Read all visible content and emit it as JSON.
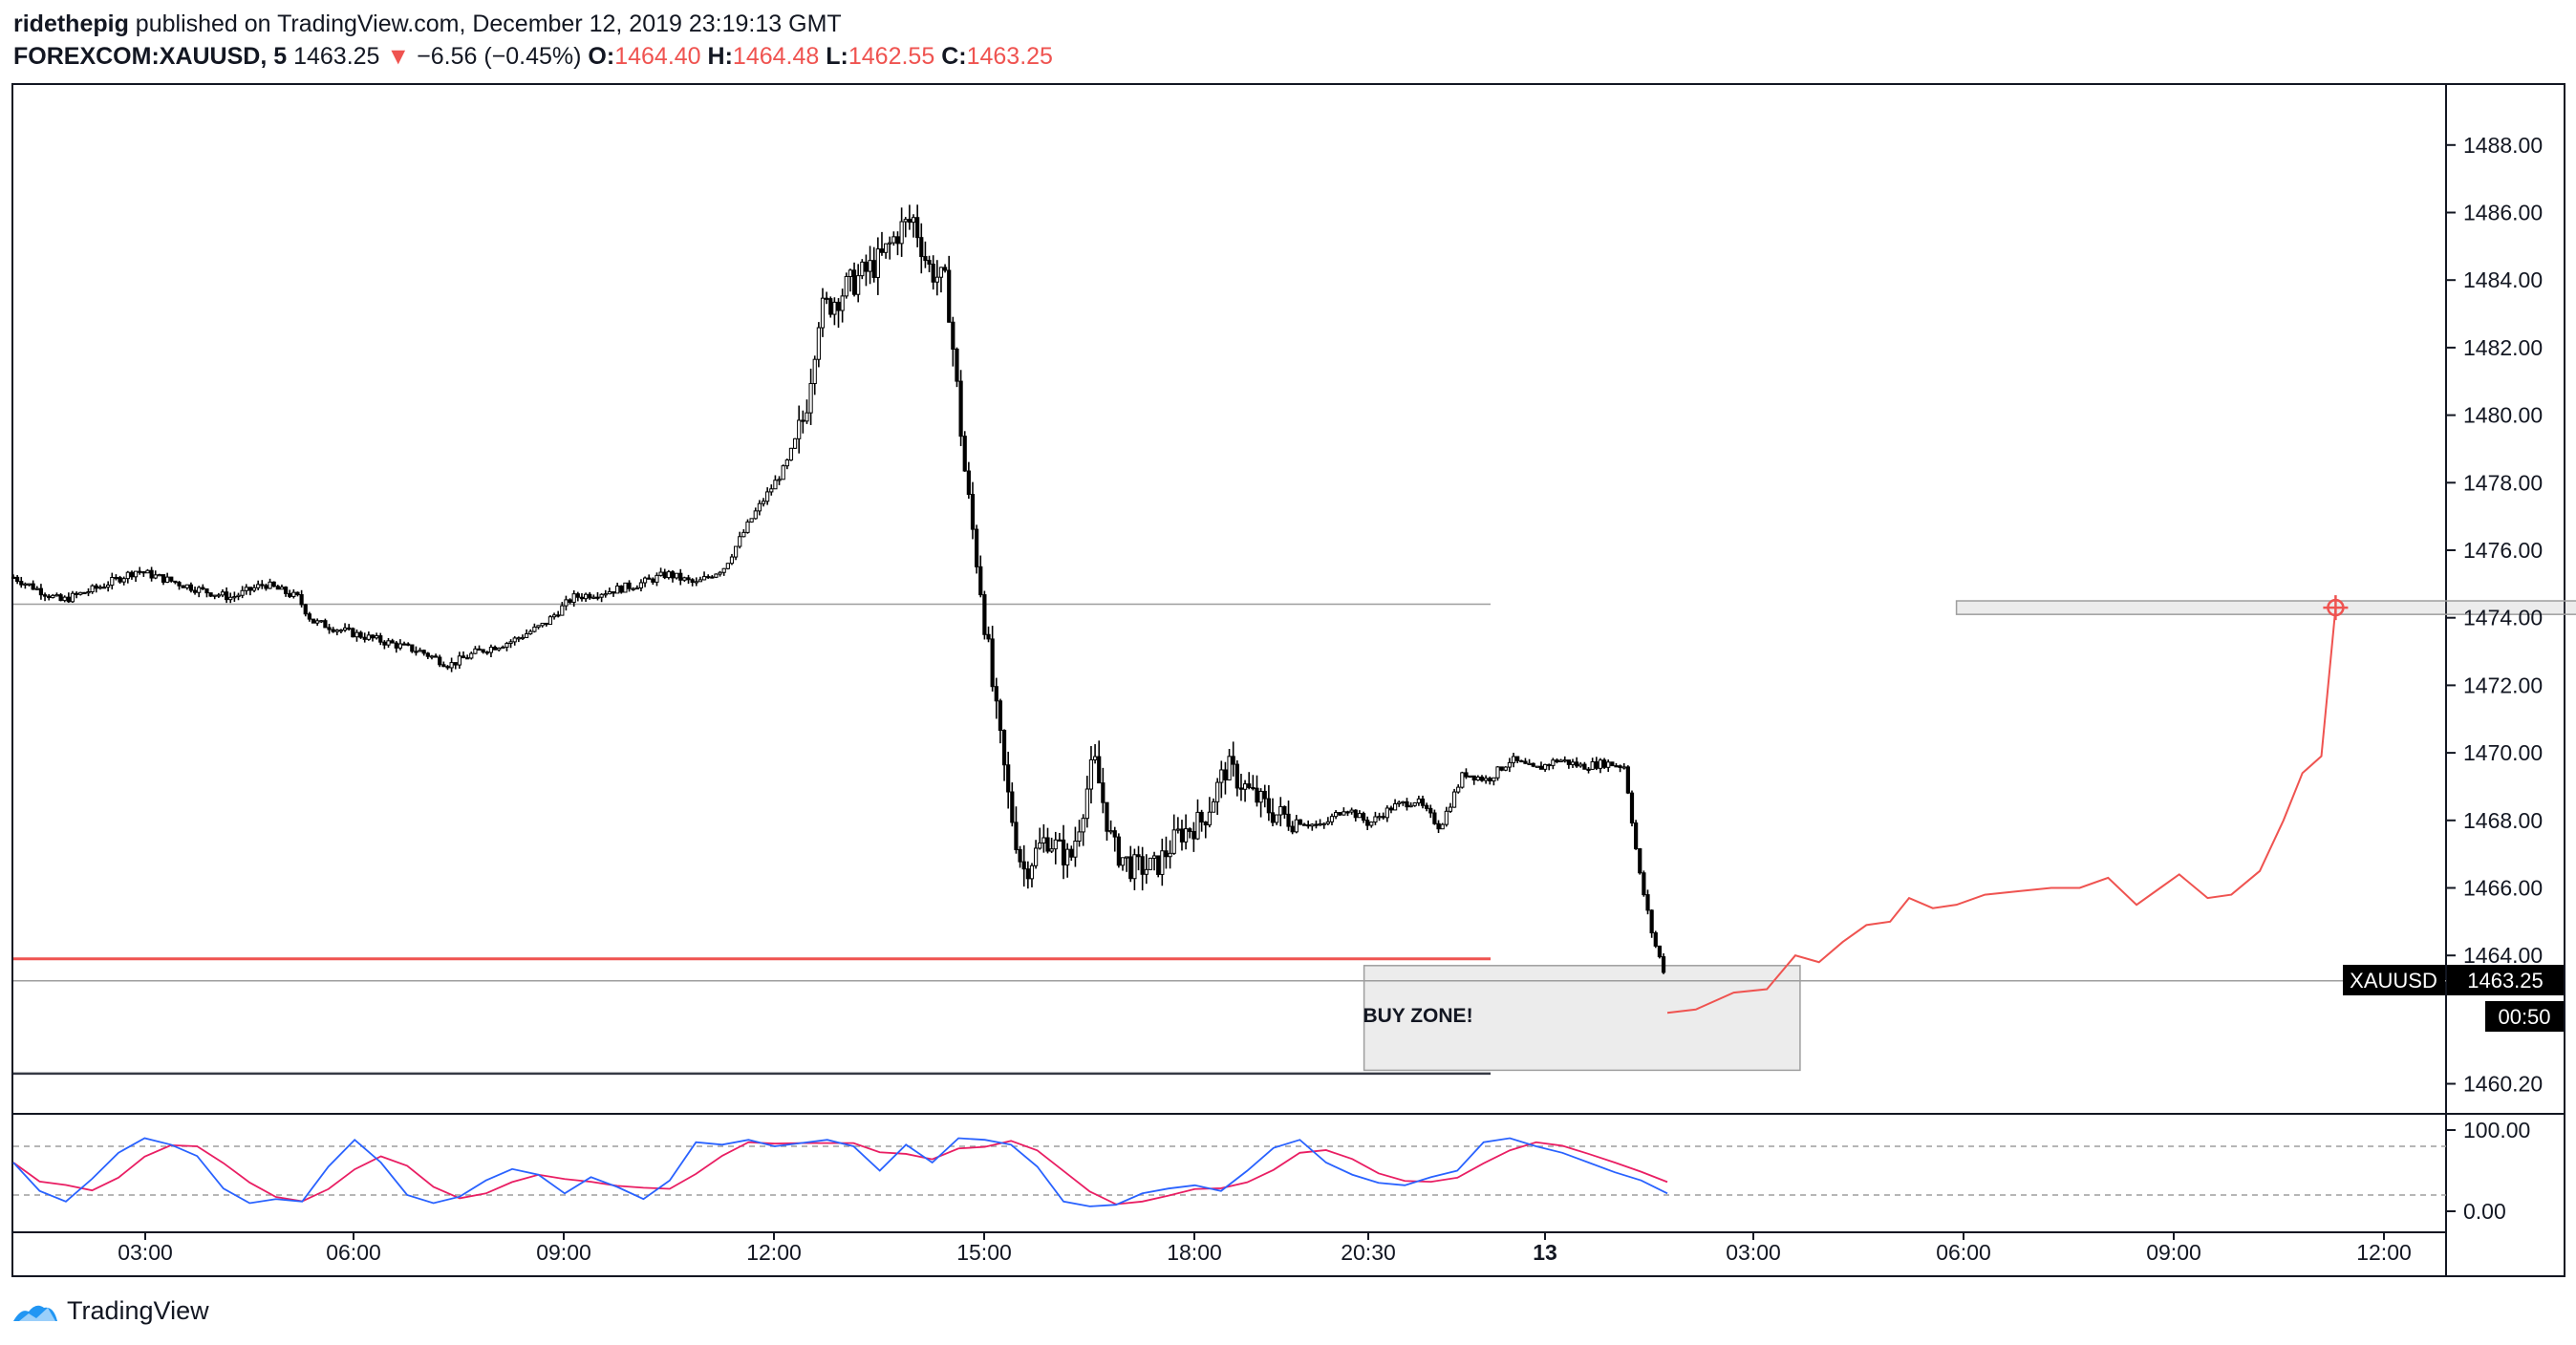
{
  "header": {
    "author": "ridethepig",
    "published_text": "published on TradingView.com, December 12, 2019 23:19:13 GMT",
    "symbol": "FOREXCOM:XAUUSD, 5",
    "last": "1463.25",
    "arrow": "▼",
    "change": "−6.56 (−0.45%)",
    "o_label": "O:",
    "o_value": "1464.40",
    "h_label": "H:",
    "h_value": "1464.48",
    "l_label": "L:",
    "l_value": "1462.55",
    "c_label": "C:",
    "c_value": "1463.25"
  },
  "annotations": {
    "buy_zone": "BUY ZONE!"
  },
  "price_badge": {
    "symbol": "XAUUSD",
    "price": "1463.25",
    "countdown": "00:50"
  },
  "footer": {
    "brand": "TradingView",
    "logo_icon": "tradingview-logo-icon"
  },
  "colors": {
    "down": "#ef5350",
    "candle": "#000000",
    "stoch_k": "#2962ff",
    "stoch_d": "#e91e63"
  },
  "chart_data": {
    "type": "candlestick",
    "instrument": "FOREXCOM:XAUUSD",
    "timeframe": "5",
    "y_ticks": [
      "1488.00",
      "1486.00",
      "1484.00",
      "1482.00",
      "1480.00",
      "1478.00",
      "1476.00",
      "1474.00",
      "1472.00",
      "1470.00",
      "1468.00",
      "1466.00",
      "1464.00",
      "1460.20"
    ],
    "x_ticks": [
      "03:00",
      "06:00",
      "09:00",
      "12:00",
      "15:00",
      "18:00",
      "20:30",
      "13",
      "03:00",
      "06:00",
      "09:00",
      "12:00"
    ],
    "ylim": [
      1459.0,
      1490.0
    ],
    "price_path": [
      {
        "t": 0.0,
        "v": 1475.2
      },
      {
        "t": 1.0,
        "v": 1474.5
      },
      {
        "t": 1.8,
        "v": 1474.9
      },
      {
        "t": 2.6,
        "v": 1475.4
      },
      {
        "t": 3.3,
        "v": 1475.1
      },
      {
        "t": 4.0,
        "v": 1474.8
      },
      {
        "t": 4.6,
        "v": 1474.6
      },
      {
        "t": 5.3,
        "v": 1475.0
      },
      {
        "t": 6.0,
        "v": 1474.6
      },
      {
        "t": 6.3,
        "v": 1473.9
      },
      {
        "t": 7.0,
        "v": 1473.6
      },
      {
        "t": 7.8,
        "v": 1473.3
      },
      {
        "t": 8.6,
        "v": 1473.0
      },
      {
        "t": 9.2,
        "v": 1472.6
      },
      {
        "t": 9.8,
        "v": 1473.0
      },
      {
        "t": 10.5,
        "v": 1473.3
      },
      {
        "t": 11.2,
        "v": 1473.8
      },
      {
        "t": 11.8,
        "v": 1474.6
      },
      {
        "t": 12.6,
        "v": 1474.8
      },
      {
        "t": 13.2,
        "v": 1475.0
      },
      {
        "t": 13.8,
        "v": 1475.3
      },
      {
        "t": 14.4,
        "v": 1475.0
      },
      {
        "t": 15.0,
        "v": 1475.5
      },
      {
        "t": 15.6,
        "v": 1477.0
      },
      {
        "t": 16.3,
        "v": 1478.5
      },
      {
        "t": 16.7,
        "v": 1480.0
      },
      {
        "t": 17.0,
        "v": 1483.0
      },
      {
        "t": 17.6,
        "v": 1483.8
      },
      {
        "t": 18.3,
        "v": 1484.6
      },
      {
        "t": 18.7,
        "v": 1485.5
      },
      {
        "t": 19.0,
        "v": 1485.8
      },
      {
        "t": 19.3,
        "v": 1484.4
      },
      {
        "t": 19.7,
        "v": 1483.8
      },
      {
        "t": 20.1,
        "v": 1478.0
      },
      {
        "t": 20.4,
        "v": 1475.0
      },
      {
        "t": 20.7,
        "v": 1471.5
      },
      {
        "t": 21.0,
        "v": 1468.6
      },
      {
        "t": 21.3,
        "v": 1466.5
      },
      {
        "t": 21.8,
        "v": 1467.5
      },
      {
        "t": 22.3,
        "v": 1466.8
      },
      {
        "t": 22.8,
        "v": 1469.8
      },
      {
        "t": 23.2,
        "v": 1467.2
      },
      {
        "t": 23.6,
        "v": 1466.6
      },
      {
        "t": 24.1,
        "v": 1466.6
      },
      {
        "t": 24.6,
        "v": 1467.6
      },
      {
        "t": 25.1,
        "v": 1468.0
      },
      {
        "t": 25.6,
        "v": 1469.6
      },
      {
        "t": 26.1,
        "v": 1468.8
      },
      {
        "t": 26.6,
        "v": 1468.2
      },
      {
        "t": 27.1,
        "v": 1468.0
      },
      {
        "t": 27.6,
        "v": 1467.8
      },
      {
        "t": 28.1,
        "v": 1468.4
      },
      {
        "t": 28.6,
        "v": 1467.9
      },
      {
        "t": 29.1,
        "v": 1468.4
      },
      {
        "t": 29.6,
        "v": 1468.6
      },
      {
        "t": 30.1,
        "v": 1467.8
      },
      {
        "t": 30.6,
        "v": 1469.4
      },
      {
        "t": 31.1,
        "v": 1469.2
      },
      {
        "t": 31.6,
        "v": 1469.8
      },
      {
        "t": 32.1,
        "v": 1469.5
      },
      {
        "t": 32.6,
        "v": 1469.8
      },
      {
        "t": 33.1,
        "v": 1469.6
      },
      {
        "t": 33.6,
        "v": 1469.7
      },
      {
        "t": 34.0,
        "v": 1469.6
      },
      {
        "t": 34.3,
        "v": 1466.5
      },
      {
        "t": 34.6,
        "v": 1464.5
      },
      {
        "t": 34.9,
        "v": 1463.25
      }
    ],
    "levels": [
      {
        "name": "resistance",
        "value": 1474.4
      },
      {
        "name": "support",
        "value": 1463.9
      },
      {
        "name": "last_price",
        "value": 1463.25
      },
      {
        "name": "lower",
        "value": 1460.5
      }
    ],
    "buy_zone": {
      "from_t": 28.5,
      "to_t": 37.7,
      "top": 1463.7,
      "bottom": 1460.6
    },
    "target_zone": {
      "from_t": 41.0,
      "to_t": 54.4,
      "top": 1474.5,
      "bottom": 1474.1
    },
    "projection": [
      {
        "t": 34.9,
        "v": 1462.3
      },
      {
        "t": 35.5,
        "v": 1462.4
      },
      {
        "t": 36.3,
        "v": 1462.9
      },
      {
        "t": 37.0,
        "v": 1463.0
      },
      {
        "t": 37.6,
        "v": 1464.0
      },
      {
        "t": 38.1,
        "v": 1463.8
      },
      {
        "t": 38.6,
        "v": 1464.4
      },
      {
        "t": 39.1,
        "v": 1464.9
      },
      {
        "t": 39.6,
        "v": 1465.0
      },
      {
        "t": 40.0,
        "v": 1465.7
      },
      {
        "t": 40.5,
        "v": 1465.4
      },
      {
        "t": 41.0,
        "v": 1465.5
      },
      {
        "t": 41.6,
        "v": 1465.8
      },
      {
        "t": 42.3,
        "v": 1465.9
      },
      {
        "t": 43.0,
        "v": 1466.0
      },
      {
        "t": 43.6,
        "v": 1466.0
      },
      {
        "t": 44.2,
        "v": 1466.3
      },
      {
        "t": 44.8,
        "v": 1465.5
      },
      {
        "t": 45.3,
        "v": 1466.0
      },
      {
        "t": 45.7,
        "v": 1466.4
      },
      {
        "t": 46.3,
        "v": 1465.7
      },
      {
        "t": 46.8,
        "v": 1465.8
      },
      {
        "t": 47.4,
        "v": 1466.5
      },
      {
        "t": 47.9,
        "v": 1468.0
      },
      {
        "t": 48.3,
        "v": 1469.4
      },
      {
        "t": 48.7,
        "v": 1469.9
      },
      {
        "t": 49.0,
        "v": 1474.3
      }
    ],
    "target_point": {
      "t": 49.0,
      "v": 1474.3
    },
    "stoch": {
      "ylim": [
        0,
        100
      ],
      "ticks": [
        "100.00",
        "0.00"
      ],
      "bands": [
        80,
        20
      ],
      "k": [
        60,
        25,
        12,
        40,
        72,
        90,
        82,
        68,
        28,
        10,
        15,
        12,
        55,
        88,
        60,
        20,
        10,
        18,
        38,
        52,
        45,
        22,
        42,
        30,
        15,
        38,
        85,
        82,
        88,
        80,
        84,
        88,
        80,
        50,
        82,
        60,
        90,
        88,
        82,
        55,
        12,
        6,
        8,
        22,
        28,
        32,
        25,
        50,
        78,
        88,
        60,
        45,
        35,
        32,
        42,
        50,
        85,
        90,
        80,
        72,
        60,
        48,
        38,
        22
      ]
    }
  }
}
